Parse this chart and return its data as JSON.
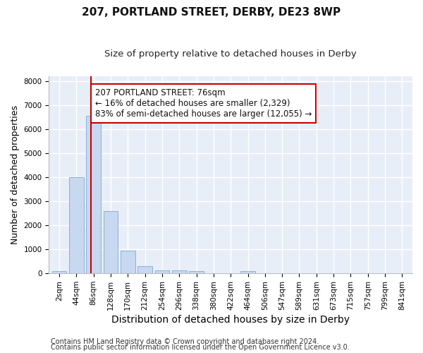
{
  "title": "207, PORTLAND STREET, DERBY, DE23 8WP",
  "subtitle": "Size of property relative to detached houses in Derby",
  "xlabel": "Distribution of detached houses by size in Derby",
  "ylabel": "Number of detached properties",
  "categories": [
    "2sqm",
    "44sqm",
    "86sqm",
    "128sqm",
    "170sqm",
    "212sqm",
    "254sqm",
    "296sqm",
    "338sqm",
    "380sqm",
    "422sqm",
    "464sqm",
    "506sqm",
    "547sqm",
    "589sqm",
    "631sqm",
    "673sqm",
    "715sqm",
    "757sqm",
    "799sqm",
    "841sqm"
  ],
  "values": [
    80,
    4000,
    6550,
    2600,
    950,
    310,
    130,
    110,
    80,
    0,
    0,
    80,
    0,
    0,
    0,
    0,
    0,
    0,
    0,
    0,
    0
  ],
  "bar_color": "#c8d8f0",
  "bar_edge_color": "#7aabcf",
  "property_line_x": 1.85,
  "property_line_color": "#cc0000",
  "annotation_text": "207 PORTLAND STREET: 76sqm\n← 16% of detached houses are smaller (2,329)\n83% of semi-detached houses are larger (12,055) →",
  "annotation_box_color": "#cc0000",
  "ylim": [
    0,
    8200
  ],
  "yticks": [
    0,
    1000,
    2000,
    3000,
    4000,
    5000,
    6000,
    7000,
    8000
  ],
  "plot_bg_color": "#e8eef8",
  "fig_bg_color": "#ffffff",
  "grid_color": "#ffffff",
  "footer_line1": "Contains HM Land Registry data © Crown copyright and database right 2024.",
  "footer_line2": "Contains public sector information licensed under the Open Government Licence v3.0.",
  "title_fontsize": 11,
  "subtitle_fontsize": 9.5,
  "xlabel_fontsize": 10,
  "ylabel_fontsize": 9,
  "tick_fontsize": 7.5,
  "annotation_fontsize": 8.5,
  "footer_fontsize": 7
}
